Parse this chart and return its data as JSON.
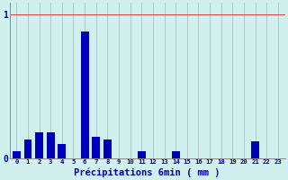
{
  "categories": [
    0,
    1,
    2,
    3,
    4,
    5,
    6,
    7,
    8,
    9,
    10,
    11,
    12,
    13,
    14,
    15,
    16,
    17,
    18,
    19,
    20,
    21,
    22,
    23
  ],
  "values": [
    0.05,
    0.13,
    0.18,
    0.18,
    0.1,
    0.0,
    0.88,
    0.15,
    0.13,
    0.0,
    0.0,
    0.05,
    0.0,
    0.0,
    0.05,
    0.0,
    0.0,
    0.0,
    0.0,
    0.0,
    0.0,
    0.12,
    0.0,
    0.0
  ],
  "bar_color": "#0000bb",
  "background_color": "#cff0ec",
  "grid_color": "#a0b8b4",
  "axis_color": "#888888",
  "text_color": "#0000bb",
  "xlabel": "Précipitations 6min ( mm )",
  "ylim": [
    0,
    1.08
  ],
  "xlim": [
    -0.6,
    23.6
  ],
  "yticks": [
    0,
    1
  ],
  "ytick_labels": [
    "0",
    "1"
  ]
}
